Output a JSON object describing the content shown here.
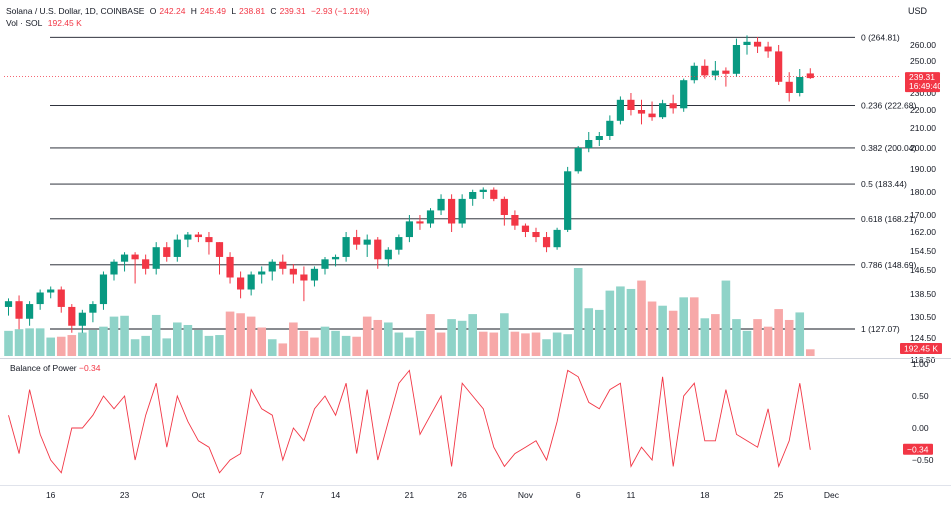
{
  "header": {
    "symbol": "Solana / U.S. Dollar, 1D, COINBASE",
    "o_label": "O",
    "o_value": "242.24",
    "h_label": "H",
    "h_value": "245.49",
    "l_label": "L",
    "l_value": "238.81",
    "c_label": "C",
    "c_value": "239.31",
    "change": "−2.93 (−1.21%)",
    "vol_label": "Vol · SOL",
    "vol_value": "192.45 K",
    "currency": "USD"
  },
  "indicator": {
    "name": "Balance of Power",
    "value": "−0.34"
  },
  "colors": {
    "up": "#089981",
    "down": "#f23645",
    "up_vol": "#8fd3c8",
    "down_vol": "#f7a8a8",
    "bop_line": "#f23645"
  },
  "chart_data": {
    "type": "candlestick",
    "x_labels": [
      {
        "i": 4,
        "label": "16"
      },
      {
        "i": 11,
        "label": "23"
      },
      {
        "i": 18,
        "label": "Oct"
      },
      {
        "i": 24,
        "label": "7"
      },
      {
        "i": 31,
        "label": "14"
      },
      {
        "i": 38,
        "label": "21"
      },
      {
        "i": 43,
        "label": "26"
      },
      {
        "i": 49,
        "label": "Nov"
      },
      {
        "i": 54,
        "label": "6"
      },
      {
        "i": 59,
        "label": "11"
      },
      {
        "i": 66,
        "label": "18"
      },
      {
        "i": 73,
        "label": "25"
      },
      {
        "i": 78,
        "label": "Dec"
      }
    ],
    "price_ticks": [
      260,
      250,
      240,
      230,
      220,
      210,
      200,
      190,
      180,
      170,
      162,
      154.5,
      146.5,
      138.5,
      130.5,
      124.5,
      118.5
    ],
    "price_tick_labels": [
      "260.00",
      "250.00",
      "240.00",
      "230.00",
      "220.00",
      "210.00",
      "200.00",
      "190.00",
      "180.00",
      "170.00",
      "162.00",
      "154.50",
      "146.50",
      "138.50",
      "130.50",
      "124.50",
      "118.50"
    ],
    "current_price": "239.31",
    "countdown": "16:49:40",
    "current_volume_label": "192.45 K",
    "fib_levels": [
      {
        "label": "0 (264.81)",
        "value": 264.81
      },
      {
        "label": "0.236 (222.68)",
        "value": 222.68
      },
      {
        "label": "0.382 (200.04)",
        "value": 200.04
      },
      {
        "label": "0.5 (183.44)",
        "value": 183.44
      },
      {
        "label": "0.618 (168.21)",
        "value": 168.21
      },
      {
        "label": "0.786 (148.69)",
        "value": 148.69
      },
      {
        "label": "1 (127.07)",
        "value": 127.07
      }
    ],
    "candles": [
      [
        134,
        137,
        131,
        136
      ],
      [
        136,
        138,
        127,
        130
      ],
      [
        130,
        136,
        128,
        135
      ],
      [
        135,
        140,
        133,
        139
      ],
      [
        139,
        141,
        137,
        140
      ],
      [
        140,
        141,
        132,
        134
      ],
      [
        134,
        135,
        126,
        128
      ],
      [
        128,
        133,
        126,
        132
      ],
      [
        132,
        136,
        129,
        135
      ],
      [
        135,
        146,
        133,
        145
      ],
      [
        145,
        151,
        143,
        150
      ],
      [
        150,
        154,
        146,
        153
      ],
      [
        153,
        154,
        142,
        151
      ],
      [
        151,
        153,
        145,
        147
      ],
      [
        147,
        158,
        145,
        156
      ],
      [
        156,
        158,
        150,
        152
      ],
      [
        152,
        161,
        150,
        159
      ],
      [
        159,
        162,
        156,
        161
      ],
      [
        161,
        162,
        158,
        160
      ],
      [
        160,
        162,
        153,
        158
      ],
      [
        158,
        158,
        145,
        152
      ],
      [
        152,
        154,
        142,
        144
      ],
      [
        144,
        146,
        137,
        140
      ],
      [
        140,
        146,
        138,
        145
      ],
      [
        145,
        148,
        142,
        146
      ],
      [
        146,
        151,
        143,
        150
      ],
      [
        150,
        153,
        145,
        147
      ],
      [
        147,
        149,
        142,
        145
      ],
      [
        145,
        148,
        136,
        143
      ],
      [
        143,
        148,
        141,
        147
      ],
      [
        147,
        152,
        145,
        151
      ],
      [
        151,
        153,
        148,
        152
      ],
      [
        152,
        162,
        150,
        160
      ],
      [
        160,
        163,
        155,
        157
      ],
      [
        157,
        161,
        152,
        159
      ],
      [
        159,
        160,
        147,
        151
      ],
      [
        151,
        156,
        148,
        155
      ],
      [
        155,
        161,
        153,
        160
      ],
      [
        160,
        170,
        158,
        167
      ],
      [
        167,
        170,
        163,
        166
      ],
      [
        166,
        173,
        164,
        172
      ],
      [
        172,
        179,
        170,
        177
      ],
      [
        177,
        179,
        162,
        166
      ],
      [
        166,
        179,
        164,
        177
      ],
      [
        177,
        181,
        174,
        180
      ],
      [
        180,
        182,
        177,
        181
      ],
      [
        181,
        182,
        176,
        177
      ],
      [
        177,
        178,
        165,
        170
      ],
      [
        170,
        172,
        163,
        165
      ],
      [
        165,
        166,
        160,
        162
      ],
      [
        162,
        164,
        158,
        160
      ],
      [
        160,
        162,
        154,
        156
      ],
      [
        156,
        164,
        155,
        163
      ],
      [
        163,
        191,
        162,
        189
      ],
      [
        189,
        201,
        188,
        200
      ],
      [
        200,
        208,
        198,
        204
      ],
      [
        204,
        208,
        201,
        206
      ],
      [
        206,
        217,
        204,
        214
      ],
      [
        214,
        228,
        212,
        226
      ],
      [
        226,
        230,
        217,
        220
      ],
      [
        220,
        226,
        212,
        218
      ],
      [
        218,
        225,
        214,
        216
      ],
      [
        216,
        226,
        215,
        224
      ],
      [
        224,
        229,
        218,
        221
      ],
      [
        221,
        239,
        219,
        238
      ],
      [
        238,
        249,
        236,
        247
      ],
      [
        247,
        251,
        239,
        241
      ],
      [
        241,
        250,
        238,
        244
      ],
      [
        244,
        246,
        234,
        242
      ],
      [
        242,
        264,
        240,
        260
      ],
      [
        260,
        266,
        254,
        262
      ],
      [
        262,
        265,
        255,
        259
      ],
      [
        259,
        262,
        252,
        256
      ],
      [
        256,
        260,
        235,
        237
      ],
      [
        237,
        243,
        225,
        230
      ],
      [
        230,
        245,
        228,
        240
      ],
      [
        242.24,
        245.49,
        238.81,
        239.31
      ]
    ],
    "volumes": [
      [
        30,
        1
      ],
      [
        32,
        1
      ],
      [
        33,
        1
      ],
      [
        33,
        1
      ],
      [
        22,
        1
      ],
      [
        23,
        0
      ],
      [
        25,
        0
      ],
      [
        28,
        1
      ],
      [
        31,
        1
      ],
      [
        35,
        1
      ],
      [
        47,
        1
      ],
      [
        48,
        1
      ],
      [
        20,
        1
      ],
      [
        24,
        1
      ],
      [
        49,
        1
      ],
      [
        21,
        1
      ],
      [
        40,
        1
      ],
      [
        37,
        1
      ],
      [
        31,
        1
      ],
      [
        24,
        1
      ],
      [
        25,
        1
      ],
      [
        53,
        0
      ],
      [
        51,
        0
      ],
      [
        47,
        0
      ],
      [
        34,
        0
      ],
      [
        20,
        1
      ],
      [
        15,
        0
      ],
      [
        40,
        0
      ],
      [
        30,
        0
      ],
      [
        22,
        0
      ],
      [
        35,
        1
      ],
      [
        30,
        1
      ],
      [
        24,
        1
      ],
      [
        23,
        0
      ],
      [
        47,
        0
      ],
      [
        43,
        0
      ],
      [
        40,
        1
      ],
      [
        28,
        1
      ],
      [
        22,
        1
      ],
      [
        30,
        1
      ],
      [
        50,
        0
      ],
      [
        28,
        0
      ],
      [
        44,
        1
      ],
      [
        42,
        1
      ],
      [
        50,
        1
      ],
      [
        29,
        0
      ],
      [
        28,
        0
      ],
      [
        51,
        1
      ],
      [
        29,
        0
      ],
      [
        27,
        0
      ],
      [
        28,
        0
      ],
      [
        20,
        1
      ],
      [
        28,
        1
      ],
      [
        26,
        1
      ],
      [
        105,
        1
      ],
      [
        57,
        1
      ],
      [
        55,
        1
      ],
      [
        78,
        1
      ],
      [
        83,
        1
      ],
      [
        80,
        1
      ],
      [
        90,
        0
      ],
      [
        65,
        0
      ],
      [
        60,
        1
      ],
      [
        54,
        0
      ],
      [
        70,
        1
      ],
      [
        70,
        0
      ],
      [
        45,
        1
      ],
      [
        50,
        0
      ],
      [
        90,
        1
      ],
      [
        44,
        1
      ],
      [
        30,
        1
      ],
      [
        44,
        0
      ],
      [
        35,
        0
      ],
      [
        56,
        0
      ],
      [
        43,
        0
      ],
      [
        52,
        1
      ],
      [
        8,
        0
      ]
    ],
    "vol_bar_max_label_note": "",
    "bop_ticks": [
      1.0,
      0.5,
      0.0,
      -0.5
    ],
    "bop_tick_labels": [
      "1.00",
      "0.50",
      "0.00",
      "−0.50"
    ],
    "bop_current_label": "−0.34",
    "bop": [
      0.2,
      -0.4,
      0.6,
      -0.1,
      -0.5,
      -0.7,
      0.0,
      0.0,
      0.2,
      0.5,
      0.3,
      0.5,
      -0.5,
      0.2,
      0.7,
      -0.3,
      0.5,
      0.1,
      -0.2,
      -0.3,
      -0.7,
      -0.5,
      -0.4,
      0.6,
      0.3,
      0.2,
      -0.5,
      0.0,
      -0.2,
      0.3,
      0.5,
      0.2,
      0.7,
      -0.4,
      0.6,
      -0.5,
      0.1,
      0.7,
      0.9,
      -0.1,
      0.2,
      0.5,
      -0.6,
      0.7,
      0.5,
      0.3,
      -0.3,
      -0.6,
      -0.4,
      -0.3,
      -0.2,
      -0.5,
      0.1,
      0.9,
      0.8,
      0.4,
      0.3,
      0.6,
      0.7,
      -0.6,
      -0.3,
      -0.5,
      0.8,
      -0.6,
      0.5,
      0.7,
      -0.2,
      -0.2,
      0.6,
      -0.1,
      -0.2,
      -0.3,
      0.3,
      -0.6,
      -0.2,
      0.7,
      -0.34
    ]
  }
}
